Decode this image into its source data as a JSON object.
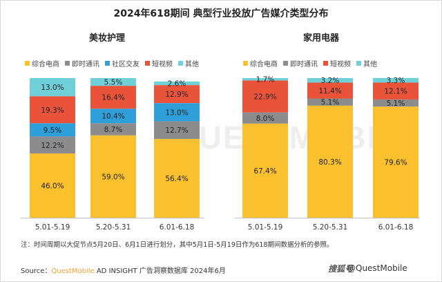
{
  "title": "2024年618期间 典型行业投放广告媒介类型分布",
  "note": "注：时间周期以大促节点5月20日、6月1日进行划分，其中5月1日-5月19日作为618期间数据分析的参照。",
  "source": {
    "prefix": "Source：",
    "brand": "QuestMobile",
    "rest": " AD INSIGHT 广告洞察数据库 2024年6月"
  },
  "watermark": {
    "logo": "搜狐号",
    "text": "@QuestMobile",
    "background": "QUESTMOBILE"
  },
  "colors": {
    "综合电商": "#fbc02d",
    "即时通讯": "#8c8c8c",
    "社区交友": "#2e9fd8",
    "短视频": "#e8533a",
    "其他": "#6fd0d8"
  },
  "chart_data": [
    {
      "type": "bar",
      "stacked": true,
      "title": "美妆护理",
      "categories": [
        "5.01-5.19",
        "5.20-5.31",
        "6.01-6.18"
      ],
      "ylim": [
        0,
        100
      ],
      "series": [
        {
          "name": "综合电商",
          "values": [
            46.0,
            59.0,
            56.4
          ],
          "labels": [
            "46.0%",
            "59.0%",
            "56.4%"
          ]
        },
        {
          "name": "即时通讯",
          "values": [
            12.2,
            8.7,
            12.7
          ],
          "labels": [
            "12.2%",
            "8.7%",
            "12.7%"
          ]
        },
        {
          "name": "社区交友",
          "values": [
            9.5,
            10.4,
            13.0
          ],
          "labels": [
            "9.5%",
            "10.4%",
            "13.0%"
          ]
        },
        {
          "name": "短视频",
          "values": [
            19.3,
            16.4,
            12.9
          ],
          "labels": [
            "19.3%",
            "16.4%",
            "12.9%"
          ]
        },
        {
          "name": "其他",
          "values": [
            13.0,
            5.5,
            2.6
          ],
          "labels": [
            "13.0%",
            "5.5%",
            "2.6%"
          ]
        }
      ]
    },
    {
      "type": "bar",
      "stacked": true,
      "title": "家用电器",
      "categories": [
        "5.01-5.19",
        "5.20-5.31",
        "6.01-6.18"
      ],
      "ylim": [
        0,
        100
      ],
      "series": [
        {
          "name": "综合电商",
          "values": [
            67.4,
            80.3,
            79.6
          ],
          "labels": [
            "67.4%",
            "80.3%",
            "79.6%"
          ]
        },
        {
          "name": "即时通讯",
          "values": [
            8.0,
            5.1,
            5.1
          ],
          "labels": [
            "8.0%",
            "5.1%",
            "5.1%"
          ]
        },
        {
          "name": "短视频",
          "values": [
            22.9,
            11.4,
            12.1
          ],
          "labels": [
            "22.9%",
            "11.4%",
            "12.1%"
          ]
        },
        {
          "name": "其他",
          "values": [
            1.7,
            3.2,
            3.3
          ],
          "labels": [
            "1.7%",
            "3.2%",
            "3.3%"
          ]
        }
      ]
    }
  ]
}
